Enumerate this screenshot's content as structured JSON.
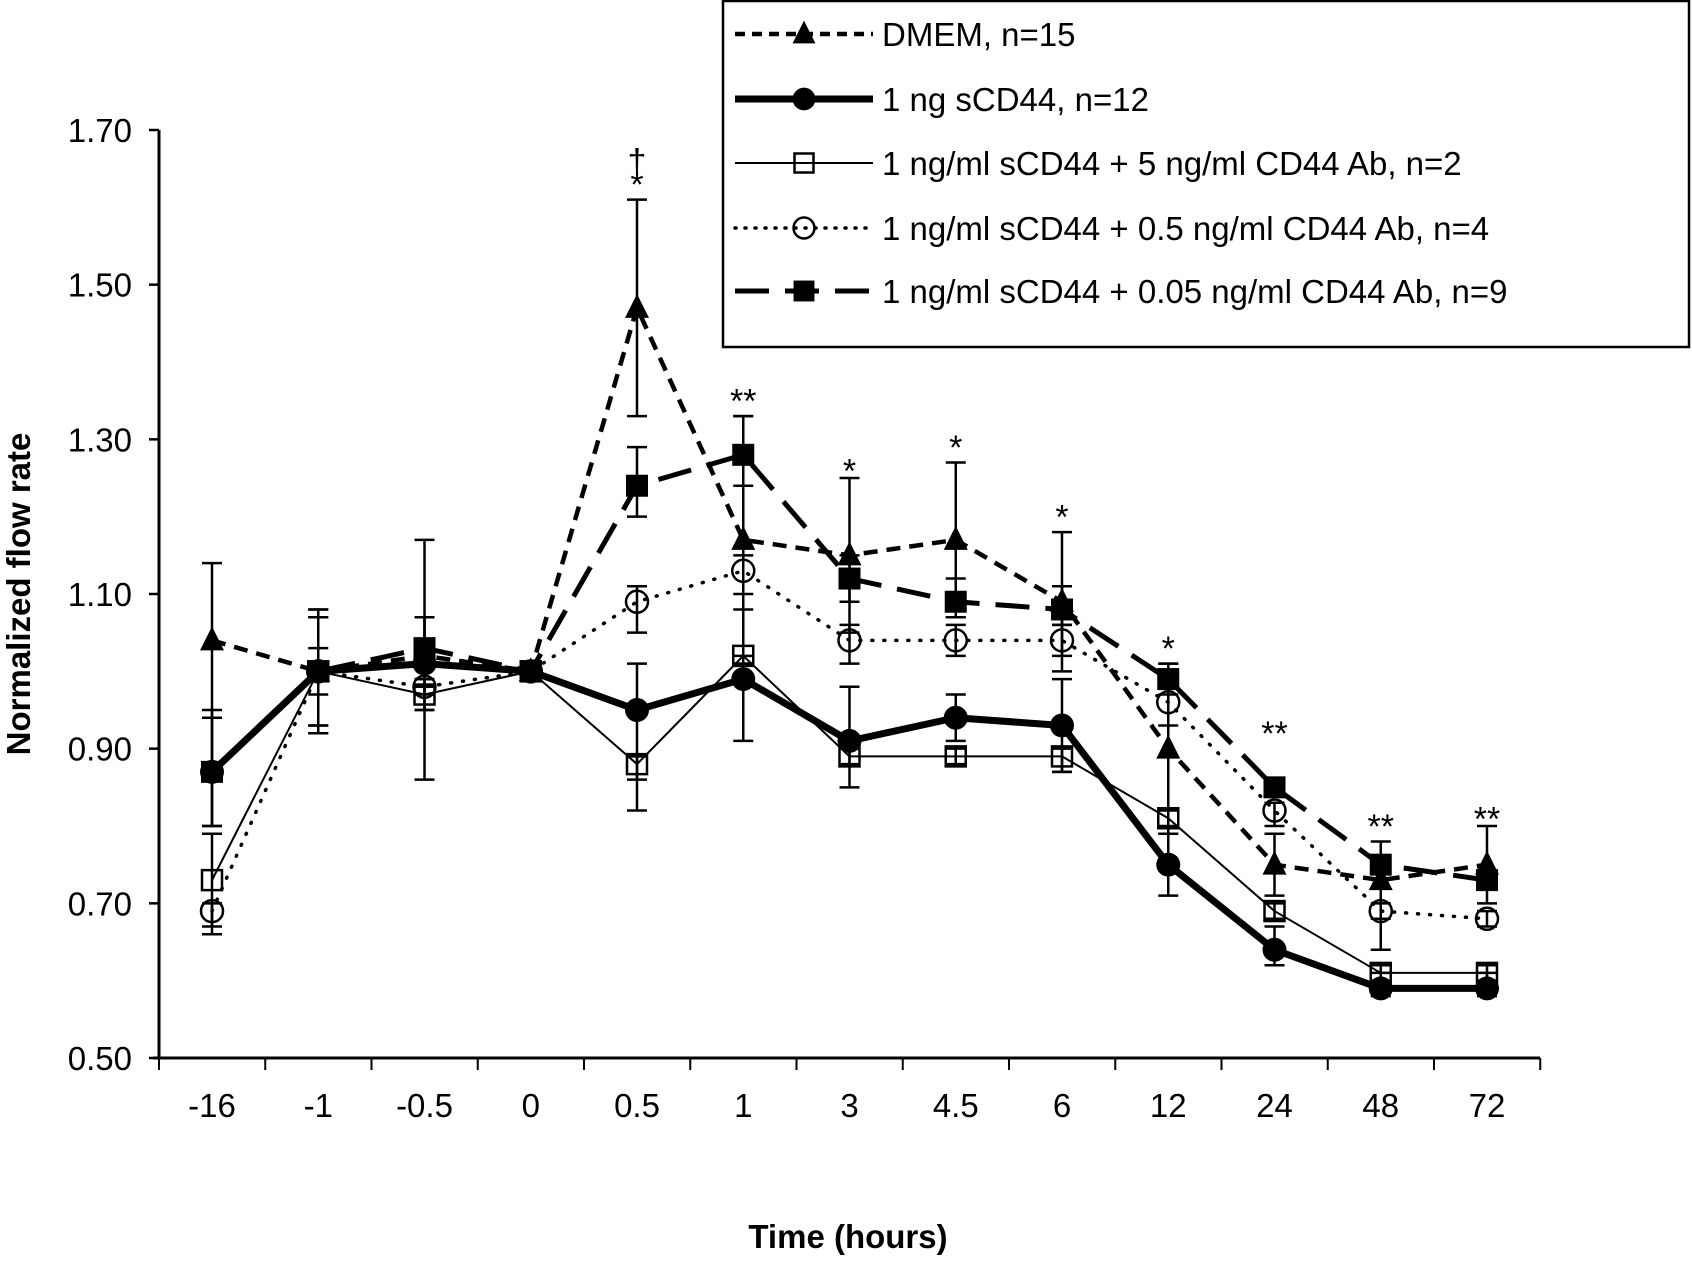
{
  "chart_data": {
    "type": "line",
    "title": "",
    "xlabel": "Time (hours)",
    "ylabel": "Normalized flow rate",
    "categories": [
      "-16",
      "-1",
      "-0.5",
      "0",
      "0.5",
      "1",
      "3",
      "4.5",
      "6",
      "12",
      "24",
      "48",
      "72"
    ],
    "ylim": [
      0.5,
      1.7
    ],
    "yticks": [
      "0.50",
      "0.70",
      "0.90",
      "1.10",
      "1.30",
      "1.50",
      "1.70"
    ],
    "ytick_values": [
      0.5,
      0.7,
      0.9,
      1.1,
      1.3,
      1.5,
      1.7
    ],
    "grid": false,
    "legend_position": "top-right",
    "series": [
      {
        "name": "DMEM, n=15",
        "marker": "triangle-filled",
        "line": "short-dash",
        "values": [
          1.04,
          1.0,
          1.02,
          1.0,
          1.47,
          1.17,
          1.15,
          1.17,
          1.09,
          0.9,
          0.75,
          0.73,
          0.75
        ],
        "err_upper": [
          1.14,
          1.07,
          1.17,
          1.0,
          1.61,
          1.33,
          1.25,
          1.27,
          1.18,
          1.01,
          0.79,
          0.78,
          0.8
        ],
        "err_lower": [
          0.94,
          0.93,
          0.86,
          1.0,
          1.33,
          1.01,
          1.05,
          1.07,
          1.0,
          0.79,
          0.71,
          0.68,
          0.7
        ]
      },
      {
        "name": "1 ng sCD44, n=12",
        "marker": "circle-filled",
        "line": "solid-thick",
        "values": [
          0.87,
          1.0,
          1.01,
          1.0,
          0.95,
          0.99,
          0.91,
          0.94,
          0.93,
          0.75,
          0.64,
          0.59,
          0.59
        ],
        "err_upper": [
          0.95,
          1.07,
          1.07,
          1.0,
          1.01,
          1.08,
          0.98,
          0.97,
          0.99,
          0.79,
          0.67,
          0.61,
          0.61
        ],
        "err_lower": [
          0.8,
          0.93,
          0.95,
          1.0,
          0.82,
          0.91,
          0.85,
          0.91,
          0.87,
          0.71,
          0.62,
          0.58,
          0.58
        ]
      },
      {
        "name": "1 ng/ml sCD44 + 5 ng/ml CD44 Ab, n=2",
        "marker": "square-open",
        "line": "solid-thin",
        "values": [
          0.73,
          1.0,
          0.97,
          1.0,
          0.88,
          1.02,
          0.89,
          0.89,
          0.89,
          0.81,
          0.69,
          0.61,
          0.61
        ],
        "err_upper": [
          0.79,
          1.03,
          0.98,
          1.0,
          0.89,
          1.02,
          0.9,
          0.9,
          0.9,
          0.82,
          0.7,
          0.62,
          0.62
        ],
        "err_lower": [
          0.67,
          0.97,
          0.95,
          1.0,
          0.86,
          1.01,
          0.88,
          0.88,
          0.87,
          0.8,
          0.68,
          0.6,
          0.6
        ]
      },
      {
        "name": "1 ng/ml sCD44 + 0.5 ng/ml CD44 Ab, n=4",
        "marker": "circle-open",
        "line": "dotted",
        "values": [
          0.69,
          1.0,
          0.98,
          1.0,
          1.09,
          1.13,
          1.04,
          1.04,
          1.04,
          0.96,
          0.82,
          0.69,
          0.68
        ],
        "err_upper": [
          0.7,
          1.08,
          0.99,
          1.0,
          1.11,
          1.15,
          1.06,
          1.06,
          1.06,
          0.98,
          0.83,
          0.7,
          0.69
        ],
        "err_lower": [
          0.66,
          0.92,
          0.97,
          1.0,
          1.05,
          1.1,
          1.01,
          1.02,
          1.02,
          0.93,
          0.8,
          0.64,
          0.67
        ]
      },
      {
        "name": "1 ng/ml sCD44 + 0.05 ng/ml CD44 Ab, n=9",
        "marker": "square-filled",
        "line": "long-dash",
        "values": [
          0.87,
          1.0,
          1.03,
          1.0,
          1.24,
          1.28,
          1.12,
          1.09,
          1.08,
          0.99,
          0.85,
          0.75,
          0.73
        ],
        "err_upper": [
          0.94,
          1.08,
          1.07,
          1.0,
          1.29,
          1.33,
          1.15,
          1.12,
          1.11,
          1.01,
          0.86,
          0.76,
          0.74
        ],
        "err_lower": [
          0.8,
          0.92,
          0.99,
          1.0,
          1.2,
          1.24,
          1.09,
          1.07,
          1.06,
          0.97,
          0.84,
          0.74,
          0.72
        ]
      }
    ],
    "annotations": [
      {
        "category": "0.5",
        "text": "†",
        "y": 1.66
      },
      {
        "category": "0.5",
        "text": "*",
        "y": 1.63
      },
      {
        "category": "1",
        "text": "**",
        "y": 1.35
      },
      {
        "category": "3",
        "text": "*",
        "y": 1.26
      },
      {
        "category": "4.5",
        "text": "*",
        "y": 1.29
      },
      {
        "category": "6",
        "text": "*",
        "y": 1.2
      },
      {
        "category": "12",
        "text": "*",
        "y": 1.03
      },
      {
        "category": "24",
        "text": "**",
        "y": 0.92
      },
      {
        "category": "48",
        "text": "**",
        "y": 0.8
      },
      {
        "category": "72",
        "text": "**",
        "y": 0.81
      }
    ]
  }
}
